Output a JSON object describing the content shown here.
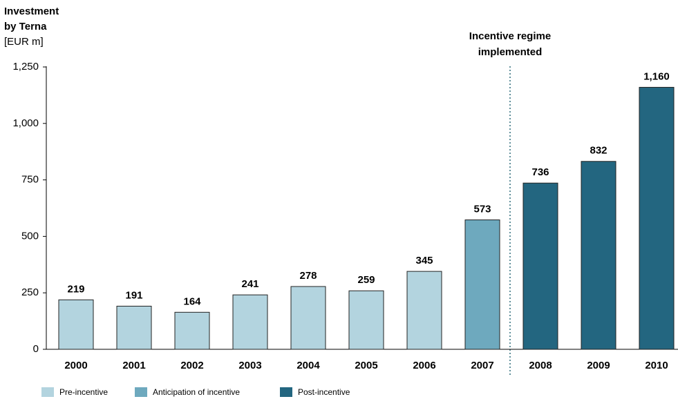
{
  "chart_data": {
    "type": "bar",
    "title_lines": [
      "Investment",
      "by Terna"
    ],
    "unit": "[EUR m]",
    "annotation_lines": [
      "Incentive  regime",
      "implemented"
    ],
    "categories": [
      "2000",
      "2001",
      "2002",
      "2003",
      "2004",
      "2005",
      "2006",
      "2007",
      "2008",
      "2009",
      "2010"
    ],
    "series": [
      {
        "name": "Pre-incentive",
        "color": "#b3d4df",
        "values": [
          219,
          191,
          164,
          241,
          278,
          259,
          345,
          null,
          null,
          null,
          null
        ]
      },
      {
        "name": "Anticipation of incentive",
        "color": "#6ea9be",
        "values": [
          null,
          null,
          null,
          null,
          null,
          null,
          null,
          573,
          null,
          null,
          null
        ]
      },
      {
        "name": "Post-incentive",
        "color": "#236680",
        "values": [
          null,
          null,
          null,
          null,
          null,
          null,
          null,
          null,
          736,
          832,
          1160
        ],
        "value_labels": [
          null,
          null,
          null,
          null,
          null,
          null,
          null,
          null,
          "736",
          "832",
          "1,160"
        ]
      }
    ],
    "ylim": [
      0,
      1250
    ],
    "yticks": [
      0,
      250,
      500,
      750,
      {
        "value": 1000,
        "label": "1,000"
      },
      {
        "value": 1250,
        "label": "1,250"
      }
    ],
    "grid": false
  }
}
